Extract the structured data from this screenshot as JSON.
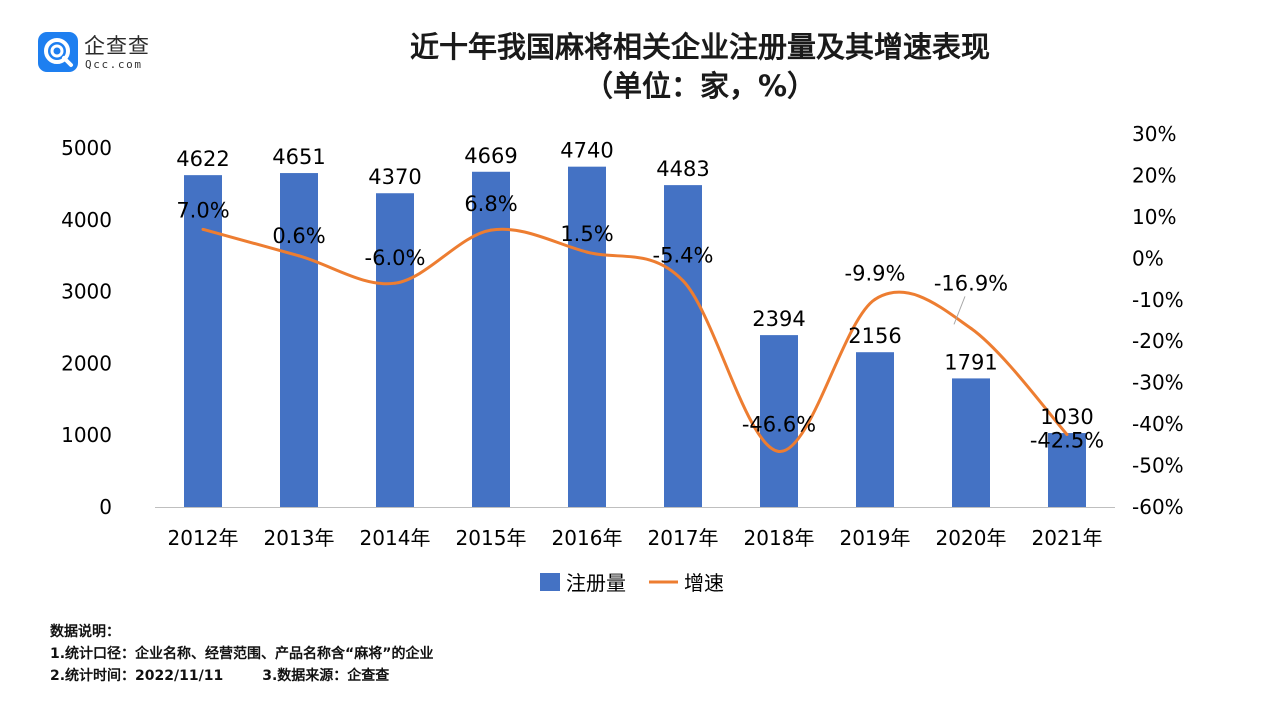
{
  "logo": {
    "name": "企查查",
    "site": "Qcc.com"
  },
  "title_line1": "近十年我国麻将相关企业注册量及其增速表现",
  "title_line2": "（单位：家，%）",
  "chart_data": {
    "type": "bar",
    "categories": [
      "2012年",
      "2013年",
      "2014年",
      "2015年",
      "2016年",
      "2017年",
      "2018年",
      "2019年",
      "2020年",
      "2021年"
    ],
    "series": [
      {
        "name": "注册量",
        "type": "bar",
        "axis": "left",
        "color": "#4472c4",
        "values": [
          4622,
          4651,
          4370,
          4669,
          4740,
          4483,
          2394,
          2156,
          1791,
          1030
        ],
        "labels": [
          "4622",
          "4651",
          "4370",
          "4669",
          "4740",
          "4483",
          "2394",
          "2156",
          "1791",
          "1030"
        ]
      },
      {
        "name": "增速",
        "type": "line",
        "axis": "right",
        "color": "#ed7d31",
        "values": [
          7.0,
          0.6,
          -6.0,
          6.8,
          1.5,
          -5.4,
          -46.6,
          -9.9,
          -16.9,
          -42.5
        ],
        "labels": [
          "7.0%",
          "0.6%",
          "-6.0%",
          "6.8%",
          "1.5%",
          "-5.4%",
          "-46.6%",
          "-9.9%",
          "-16.9%",
          "-42.5%"
        ]
      }
    ],
    "y_left": {
      "min": 0,
      "max": 5000,
      "ticks": [
        "0",
        "1000",
        "2000",
        "3000",
        "4000",
        "5000"
      ]
    },
    "y_right": {
      "min": -60,
      "max": 30,
      "ticks": [
        "30%",
        "20%",
        "10%",
        "0%",
        "-10%",
        "-20%",
        "-30%",
        "-40%",
        "-50%",
        "-60%"
      ]
    },
    "legend": "bottom",
    "grid": false
  },
  "notes": {
    "heading": "数据说明：",
    "line1": "1.统计口径：企业名称、经营范围、产品名称含“麻将”的企业",
    "line2": "2.统计时间：2022/11/11        3.数据来源：企查查"
  }
}
